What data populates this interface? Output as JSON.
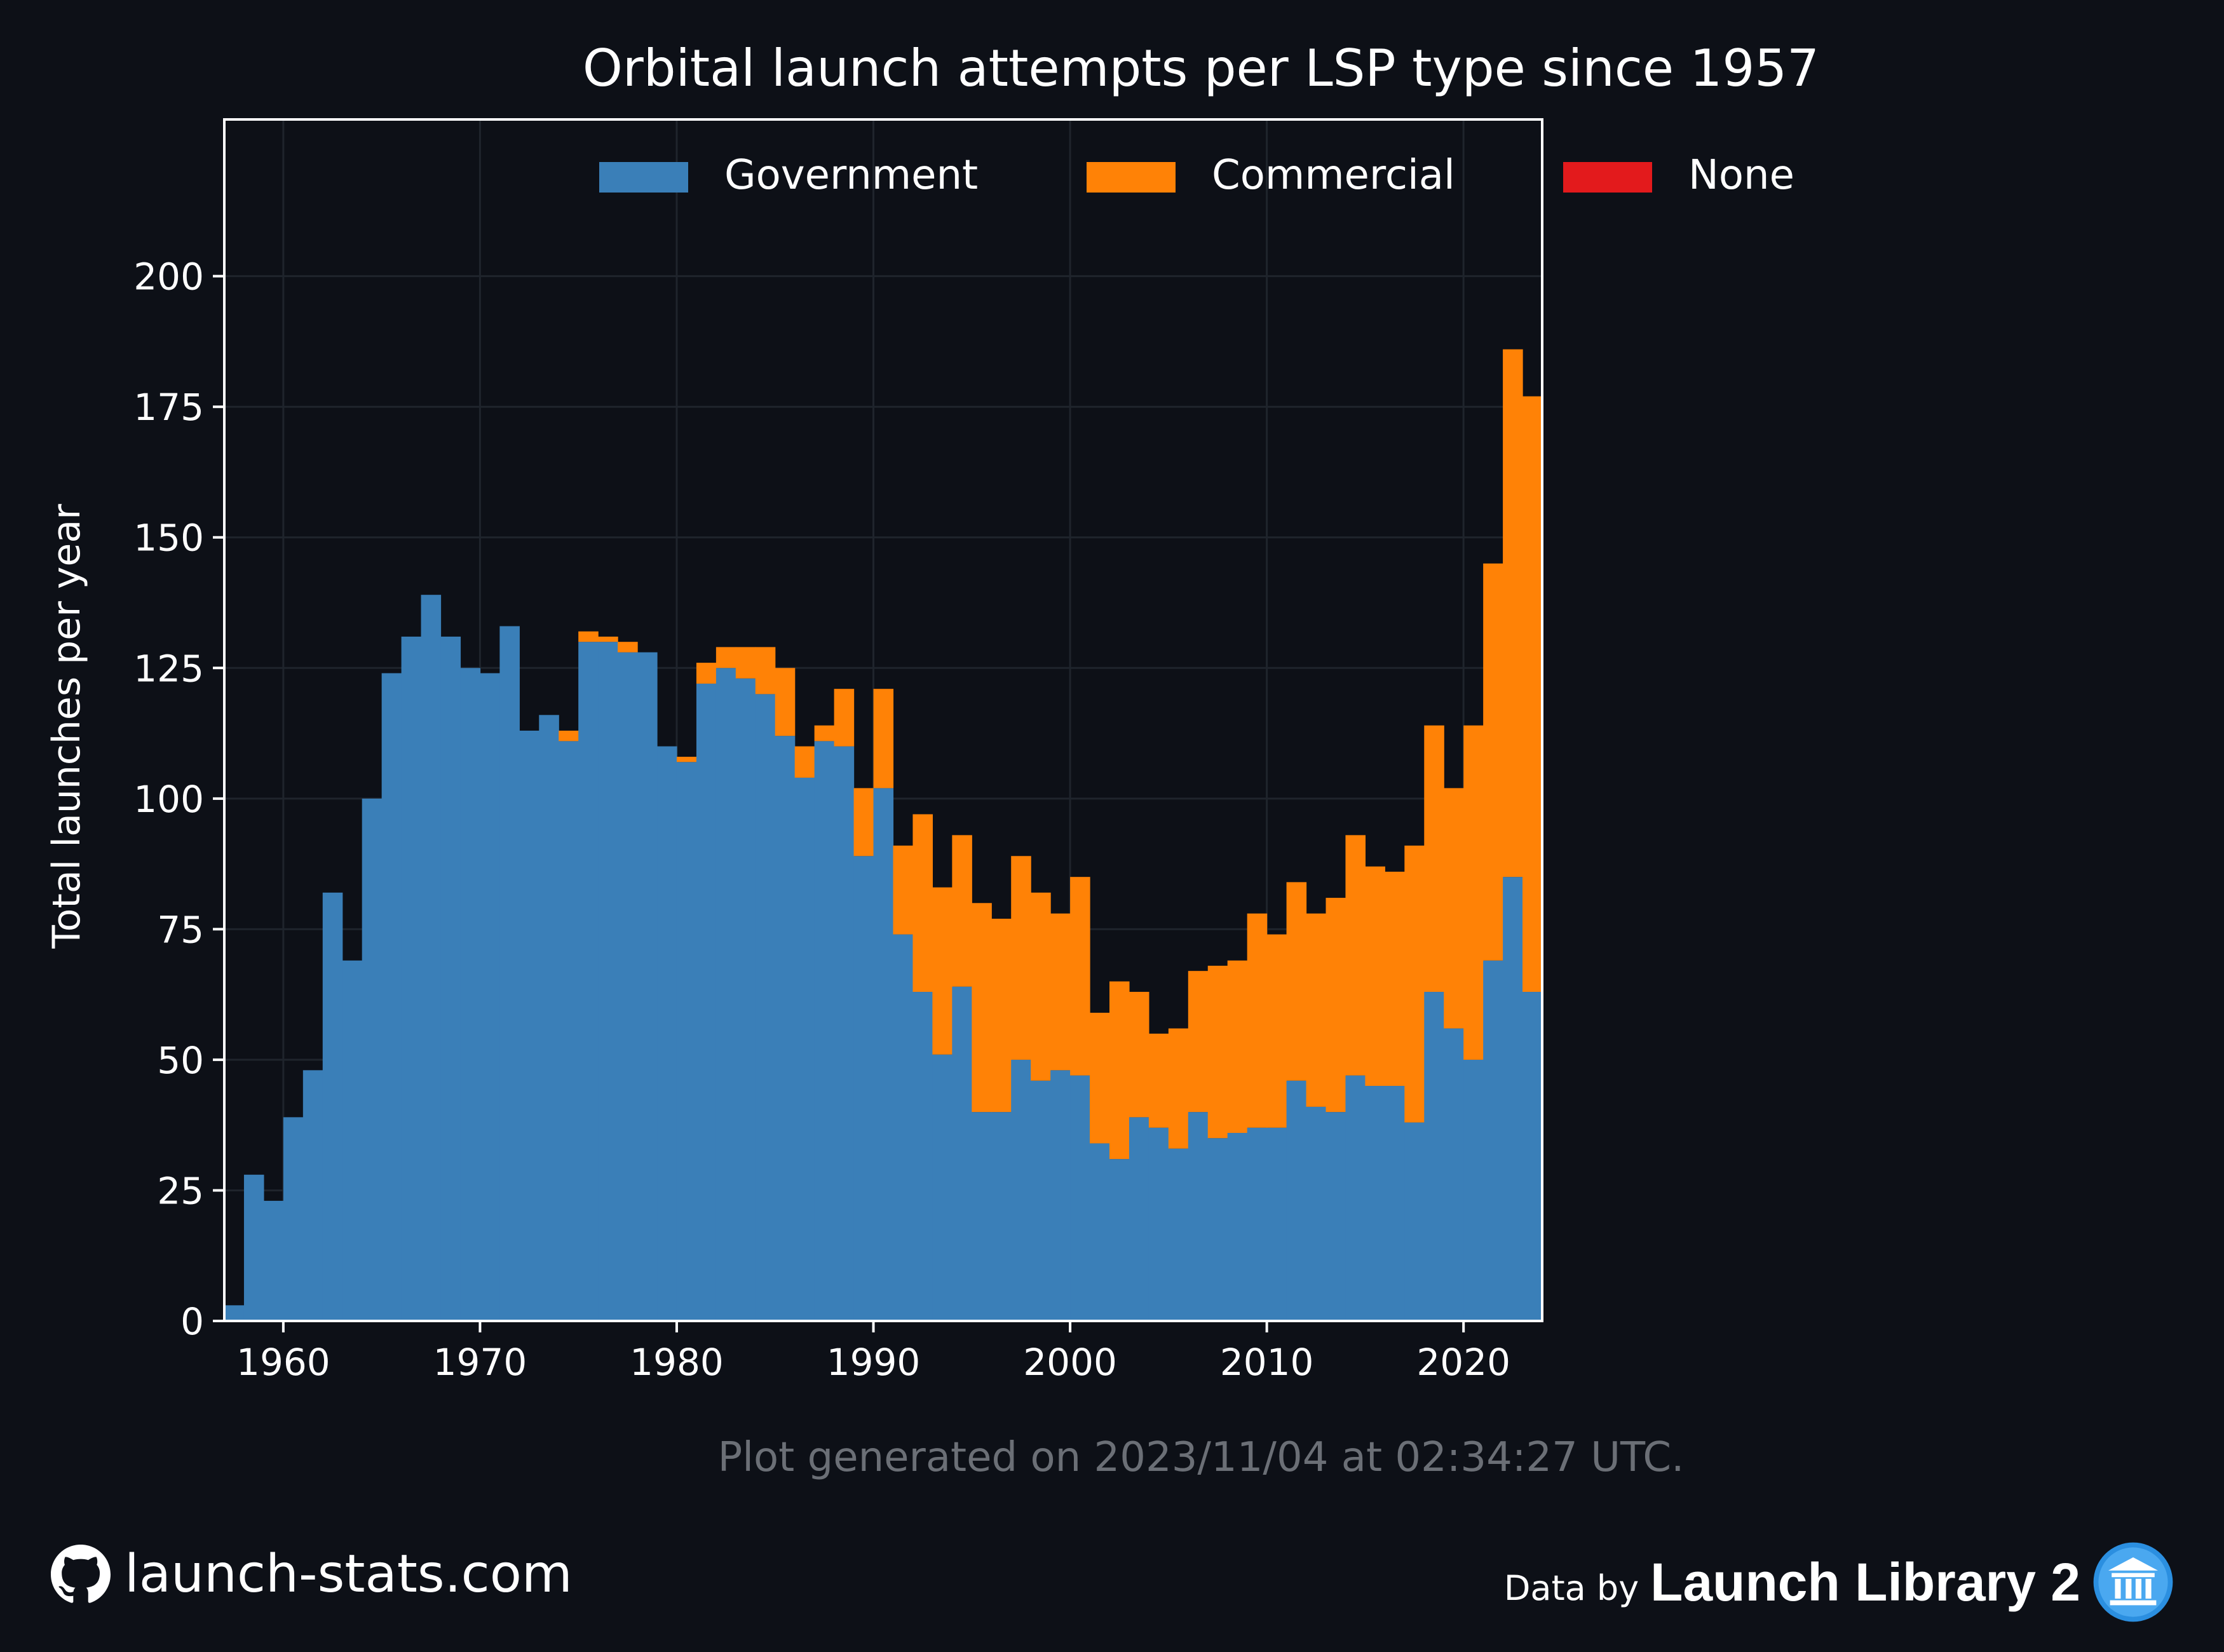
{
  "title": "Orbital launch attempts per LSP type since 1957",
  "ylabel": "Total launches per year",
  "footnote": "Plot generated on 2023/11/04 at 02:34:27 UTC.",
  "branding": {
    "site": "launch-stats.com",
    "site_icon": "github-icon",
    "data_by_prefix": "Data by",
    "data_source": "Launch Library 2",
    "data_source_icon": "launch-library-icon"
  },
  "colors": {
    "background": "#0d1017",
    "Government": "#3a7fb8",
    "Commercial": "#ff8206",
    "None": "#e31a1c",
    "axis": "#ffffff",
    "grid": "#1f242c",
    "footnote": "#6b6f76"
  },
  "chart_data": {
    "type": "bar",
    "stacked": true,
    "title": "Orbital launch attempts per LSP type since 1957",
    "xlabel": "",
    "ylabel": "Total launches per year",
    "xlim": [
      1957,
      2024
    ],
    "ylim": [
      0,
      230
    ],
    "xticks": [
      1960,
      1970,
      1980,
      1990,
      2000,
      2010,
      2020
    ],
    "yticks": [
      0,
      25,
      50,
      75,
      100,
      125,
      150,
      175,
      200
    ],
    "grid": true,
    "legend": {
      "placement": "top-center",
      "entries": [
        "Government",
        "Commercial",
        "None"
      ]
    },
    "x": [
      1957,
      1958,
      1959,
      1960,
      1961,
      1962,
      1963,
      1964,
      1965,
      1966,
      1967,
      1968,
      1969,
      1970,
      1971,
      1972,
      1973,
      1974,
      1975,
      1976,
      1977,
      1978,
      1979,
      1980,
      1981,
      1982,
      1983,
      1984,
      1985,
      1986,
      1987,
      1988,
      1989,
      1990,
      1991,
      1992,
      1993,
      1994,
      1995,
      1996,
      1997,
      1998,
      1999,
      2000,
      2001,
      2002,
      2003,
      2004,
      2005,
      2006,
      2007,
      2008,
      2009,
      2010,
      2011,
      2012,
      2013,
      2014,
      2015,
      2016,
      2017,
      2018,
      2019,
      2020,
      2021,
      2022,
      2023
    ],
    "series": [
      {
        "name": "Government",
        "values": [
          3,
          28,
          23,
          39,
          48,
          82,
          69,
          100,
          124,
          131,
          139,
          131,
          125,
          124,
          133,
          113,
          116,
          111,
          130,
          130,
          128,
          128,
          110,
          107,
          122,
          125,
          123,
          120,
          112,
          104,
          111,
          110,
          89,
          102,
          74,
          63,
          51,
          64,
          40,
          40,
          50,
          46,
          48,
          47,
          34,
          31,
          39,
          37,
          33,
          40,
          35,
          36,
          37,
          37,
          46,
          41,
          40,
          47,
          45,
          45,
          38,
          63,
          56,
          50,
          69,
          85,
          63
        ]
      },
      {
        "name": "Commercial",
        "values": [
          0,
          0,
          0,
          0,
          0,
          0,
          0,
          0,
          0,
          0,
          0,
          0,
          0,
          0,
          0,
          0,
          0,
          2,
          2,
          1,
          2,
          0,
          0,
          1,
          4,
          4,
          6,
          9,
          13,
          6,
          3,
          11,
          13,
          19,
          17,
          34,
          32,
          29,
          40,
          37,
          39,
          36,
          30,
          38,
          25,
          34,
          24,
          18,
          23,
          27,
          33,
          33,
          41,
          37,
          38,
          37,
          41,
          46,
          42,
          41,
          53,
          51,
          46,
          64,
          76,
          101,
          114
        ]
      },
      {
        "name": "None",
        "values": [
          0,
          0,
          0,
          0,
          0,
          0,
          0,
          0,
          0,
          0,
          0,
          0,
          0,
          0,
          0,
          0,
          0,
          0,
          0,
          0,
          0,
          0,
          0,
          0,
          0,
          0,
          0,
          0,
          0,
          0,
          0,
          0,
          0,
          0,
          0,
          0,
          0,
          0,
          0,
          0,
          0,
          0,
          0,
          0,
          0,
          0,
          0,
          0,
          0,
          0,
          0,
          0,
          0,
          0,
          0,
          0,
          0,
          0,
          0,
          0,
          0,
          0,
          0,
          0,
          0,
          0,
          0
        ]
      }
    ]
  }
}
